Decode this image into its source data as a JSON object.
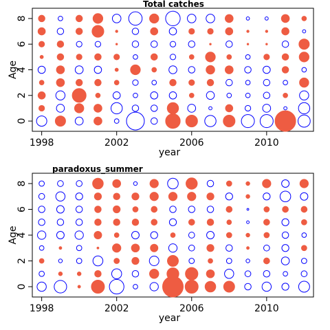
{
  "chart_data": [
    {
      "type": "scatter",
      "title": "Total catches",
      "xlabel": "year",
      "ylabel": "Age",
      "xlim": [
        1997.5,
        2012.5
      ],
      "ylim": [
        -0.8,
        8.8
      ],
      "xticks": [
        1998,
        2002,
        2006,
        2010
      ],
      "yticks": [
        0,
        2,
        4,
        6,
        8
      ],
      "encoding": "bubble area = |residual|; filled red = positive, open blue = negative",
      "colors": {
        "positive": "#ee5c42",
        "negative": "#0000ff"
      },
      "years": [
        1998,
        1999,
        2000,
        2001,
        2002,
        2003,
        2004,
        2005,
        2006,
        2007,
        2008,
        2009,
        2010,
        2011,
        2012
      ],
      "ages": [
        0,
        1,
        2,
        3,
        4,
        5,
        6,
        7,
        8
      ],
      "residuals": [
        [
          -1.0,
          1.0,
          -0.6,
          0.6,
          -0.2,
          -3.0,
          -0.4,
          2.0,
          1.3,
          -1.2,
          1.3,
          -1.6,
          -1.6,
          4.0,
          -1.4
        ],
        [
          0.3,
          -0.6,
          0.8,
          0.6,
          -1.2,
          -0.4,
          -0.4,
          1.2,
          -0.6,
          -0.1,
          0.5,
          -0.3,
          -0.6,
          -0.1,
          -1.2
        ],
        [
          0.5,
          -0.8,
          1.8,
          0.2,
          -0.5,
          -0.2,
          -0.5,
          -0.5,
          0.2,
          -0.6,
          -0.2,
          -0.2,
          -0.4,
          0.2,
          -0.8
        ],
        [
          0.2,
          0.6,
          0.4,
          0.4,
          0.2,
          -0.3,
          -0.2,
          0.4,
          0.3,
          0.4,
          -0.4,
          -0.2,
          -0.4,
          -0.2,
          0.8
        ],
        [
          -0.5,
          0.6,
          -0.6,
          -0.5,
          0.1,
          0.9,
          0.2,
          -0.6,
          -0.4,
          0.7,
          0.6,
          -0.4,
          -0.5,
          0.4,
          -0.2
        ],
        [
          0.1,
          0.4,
          0.3,
          0.4,
          0.3,
          -0.2,
          0.4,
          -0.3,
          0.2,
          0.9,
          0.2,
          -0.2,
          0.3,
          0.4,
          0.9
        ],
        [
          0.3,
          0.4,
          -0.3,
          -0.3,
          0.02,
          -0.4,
          -0.4,
          -0.3,
          -0.4,
          0.02,
          -0.4,
          0.02,
          0.02,
          -0.4,
          1.0
        ],
        [
          0.5,
          -0.4,
          0.4,
          1.3,
          0.05,
          -0.4,
          0.5,
          -0.5,
          0.3,
          0.3,
          0.5,
          0.05,
          0.05,
          0.5,
          -0.1
        ],
        [
          0.4,
          -0.2,
          0.4,
          0.9,
          -0.7,
          -1.7,
          0.8,
          -2.0,
          -0.7,
          -0.7,
          0.6,
          -0.1,
          -0.1,
          0.6,
          0.2
        ]
      ]
    },
    {
      "type": "scatter",
      "title": "paradoxus_summer",
      "xlabel": "year",
      "ylabel": "Age",
      "xlim": [
        1997.5,
        2012.5
      ],
      "ylim": [
        -0.8,
        8.8
      ],
      "xticks": [
        1998,
        2002,
        2006,
        2010
      ],
      "yticks": [
        0,
        2,
        4,
        6,
        8
      ],
      "encoding": "bubble area = |residual|; filled red = positive, open blue = negative",
      "colors": {
        "positive": "#ee5c42",
        "negative": "#0000ff"
      },
      "years": [
        1998,
        1999,
        2000,
        2001,
        2002,
        2003,
        2004,
        2005,
        2006,
        2007,
        2008,
        2009,
        2010,
        2011,
        2012
      ],
      "ages": [
        0,
        1,
        2,
        3,
        4,
        5,
        6,
        7,
        8
      ],
      "residuals": [
        [
          -1.2,
          -2.2,
          0.1,
          2.4,
          -3.0,
          -0.3,
          -1.0,
          6.0,
          2.4,
          1.6,
          1.7,
          -0.6,
          -1.2,
          -0.7,
          -1.7
        ],
        [
          -0.4,
          0.2,
          0.2,
          0.6,
          -1.4,
          -0.6,
          1.2,
          2.0,
          2.2,
          0.9,
          -1.2,
          -0.5,
          -0.6,
          -0.3,
          -0.5
        ],
        [
          0.3,
          -0.2,
          -0.4,
          -1.4,
          0.4,
          0.7,
          -1.3,
          1.7,
          -0.4,
          0.3,
          -0.4,
          -0.2,
          0.5,
          -0.9,
          -0.4
        ],
        [
          -0.3,
          0.1,
          -0.4,
          0.05,
          1.0,
          0.9,
          0.8,
          -1.0,
          -0.5,
          0.7,
          -0.6,
          0.1,
          -0.5,
          -0.7,
          0.4
        ],
        [
          -1.0,
          -0.8,
          -1.0,
          0.8,
          0.3,
          -0.8,
          -0.7,
          0.3,
          -0.5,
          -0.8,
          0.4,
          0.2,
          0.4,
          -0.6,
          -0.3
        ],
        [
          -0.6,
          -0.6,
          -0.6,
          0.6,
          0.6,
          0.6,
          0.5,
          -0.7,
          0.5,
          0.6,
          0.3,
          -0.1,
          0.5,
          -0.7,
          0.4
        ],
        [
          -0.6,
          -0.8,
          -0.6,
          0.6,
          0.7,
          0.4,
          0.5,
          -0.6,
          -0.6,
          -0.6,
          0.5,
          -0.05,
          0.4,
          0.5,
          0.5
        ],
        [
          -0.5,
          -1.2,
          -0.7,
          0.7,
          0.6,
          0.7,
          1.0,
          1.0,
          1.0,
          0.7,
          -0.7,
          0.2,
          -0.7,
          -1.6,
          -0.8
        ],
        [
          -0.4,
          -0.5,
          -0.5,
          1.6,
          0.9,
          -0.2,
          1.0,
          -1.6,
          1.8,
          -0.6,
          0.4,
          0.2,
          1.0,
          -0.8,
          1.0
        ]
      ]
    }
  ]
}
